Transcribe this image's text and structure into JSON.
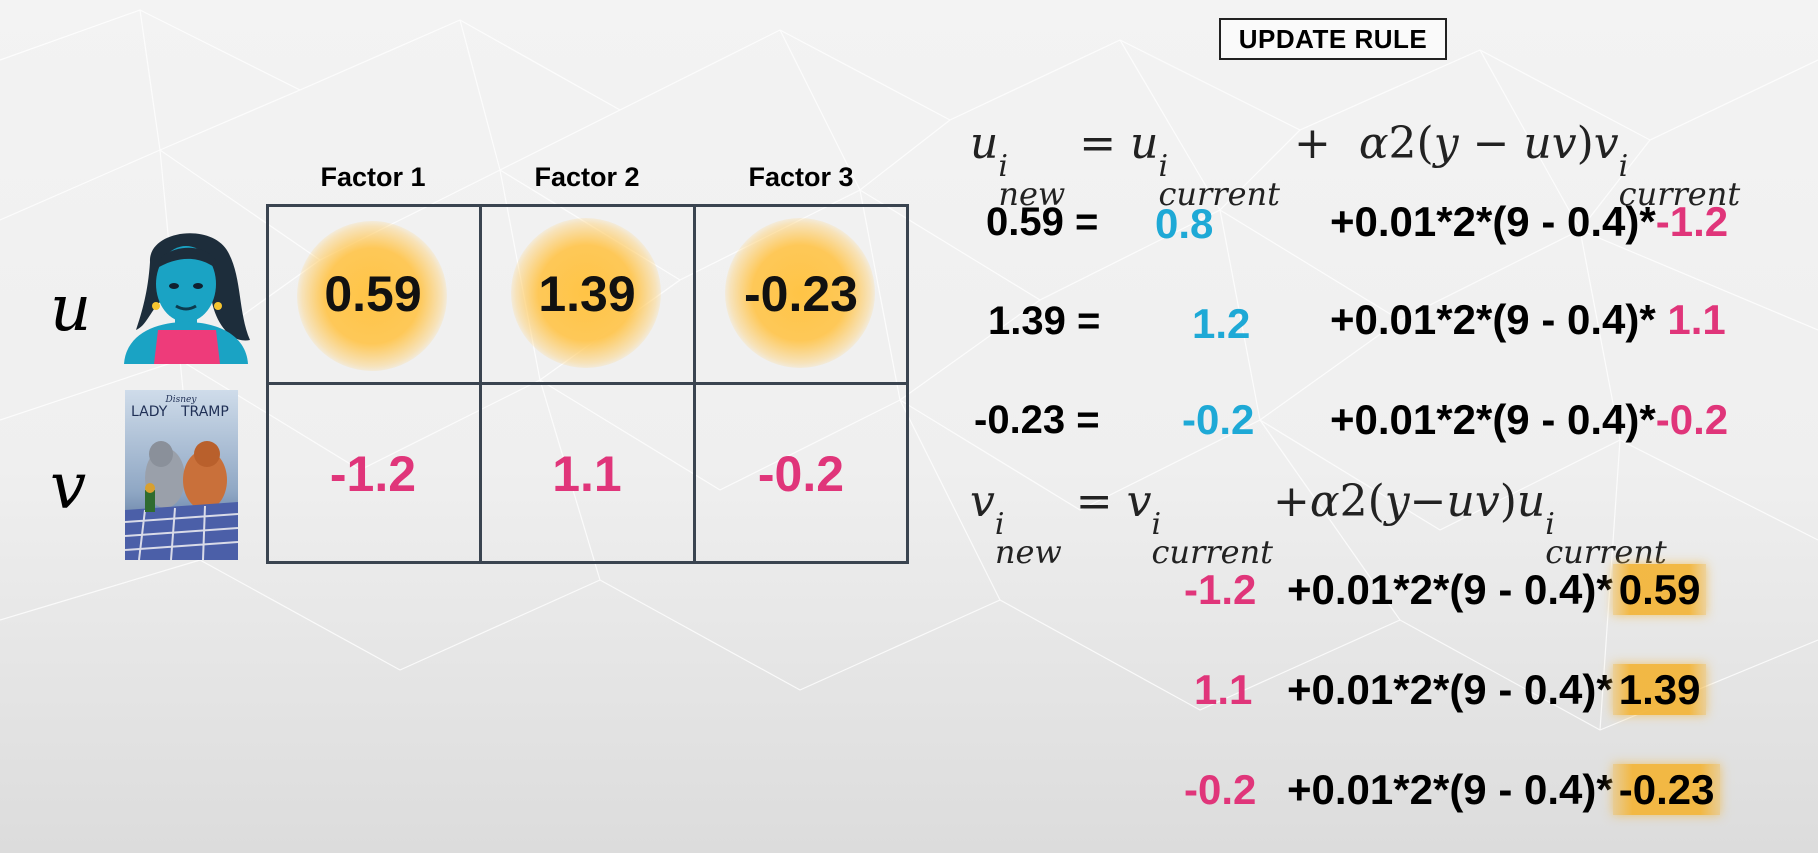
{
  "title": "UPDATE RULE",
  "factors": [
    "Factor 1",
    "Factor 2",
    "Factor 3"
  ],
  "row_labels": {
    "u": "u",
    "v": "v"
  },
  "poster": {
    "brand": "Disney",
    "title_line1": "LADY",
    "title_line2": "TRAMP"
  },
  "u_values": [
    "0.59",
    "1.39",
    "-0.23"
  ],
  "v_values": [
    "-1.2",
    "1.1",
    "-0.2"
  ],
  "colors": {
    "current": "#1ea9d6",
    "factor": "#e0357a",
    "highlight": "#f3b63c"
  },
  "u_updates": [
    {
      "lhs": "0.59 =",
      "current": "0.8",
      "expr": "+0.01*2*(9 - 0.4)*",
      "factor": "-1.2"
    },
    {
      "lhs": "1.39 =",
      "current": "1.2",
      "expr": "+0.01*2*(9 - 0.4)* ",
      "factor": "1.1"
    },
    {
      "lhs": "-0.23 =",
      "current": "-0.2",
      "expr": "+0.01*2*(9 - 0.4)*",
      "factor": "-0.2"
    }
  ],
  "v_updates": [
    {
      "current": "-1.2",
      "expr": "+0.01*2*(9 - 0.4)*",
      "factor": "0.59"
    },
    {
      "current": "1.1",
      "expr": "+0.01*2*(9 - 0.4)*",
      "factor": "1.39"
    },
    {
      "current": "-0.2",
      "expr": "+0.01*2*(9 - 0.4)*",
      "factor": "-0.23"
    }
  ]
}
